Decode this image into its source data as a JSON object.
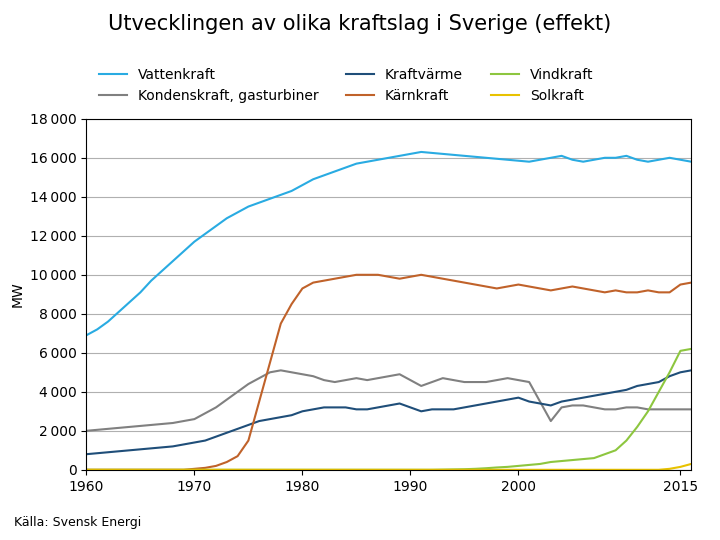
{
  "chart_data": {
    "type": "line",
    "title": "Utvecklingen av olika kraftslag i Sverige (effekt)",
    "y_label": "MW",
    "annotations": [
      "Källa: Svensk Energi"
    ],
    "grid": "y",
    "xlim": [
      1960,
      2016
    ],
    "xticks": [
      1960,
      1970,
      1980,
      1990,
      2000,
      2015
    ],
    "ylim": [
      0,
      18000
    ],
    "yticks": [
      0,
      {
        "value": 2000,
        "label": "2 000"
      },
      {
        "value": 4000,
        "label": "4 000"
      },
      {
        "value": 6000,
        "label": "6 000"
      },
      {
        "value": 8000,
        "label": "8 000"
      },
      {
        "value": 10000,
        "label": "10 000"
      },
      {
        "value": 12000,
        "label": "12 000"
      },
      {
        "value": 14000,
        "label": "14 000"
      },
      {
        "value": 16000,
        "label": "16 000"
      },
      {
        "value": 18000,
        "label": "18 000"
      }
    ],
    "x": [
      1960,
      1961,
      1962,
      1963,
      1964,
      1965,
      1966,
      1967,
      1968,
      1969,
      1970,
      1971,
      1972,
      1973,
      1974,
      1975,
      1976,
      1977,
      1978,
      1979,
      1980,
      1981,
      1982,
      1983,
      1984,
      1985,
      1986,
      1987,
      1988,
      1989,
      1990,
      1991,
      1992,
      1993,
      1994,
      1995,
      1996,
      1997,
      1998,
      1999,
      2000,
      2001,
      2002,
      2003,
      2004,
      2005,
      2006,
      2007,
      2008,
      2009,
      2010,
      2011,
      2012,
      2013,
      2014,
      2015,
      2016
    ],
    "series": [
      {
        "name": "Vattenkraft",
        "color": "#29ABE2",
        "values": [
          6900,
          7200,
          7600,
          8100,
          8600,
          9100,
          9700,
          10200,
          10700,
          11200,
          11700,
          12100,
          12500,
          12900,
          13200,
          13500,
          13700,
          13900,
          14100,
          14300,
          14600,
          14900,
          15100,
          15300,
          15500,
          15700,
          15800,
          15900,
          16000,
          16100,
          16200,
          16300,
          16250,
          16200,
          16150,
          16100,
          16050,
          16000,
          15950,
          15900,
          15850,
          15800,
          15900,
          16000,
          16100,
          15900,
          15800,
          15900,
          16000,
          16000,
          16100,
          15900,
          15800,
          15900,
          16000,
          15900,
          15800
        ]
      },
      {
        "name": "Kondenskraft, gasturbiner",
        "color": "#808080",
        "values": [
          2000,
          2050,
          2100,
          2150,
          2200,
          2250,
          2300,
          2350,
          2400,
          2500,
          2600,
          2900,
          3200,
          3600,
          4000,
          4400,
          4700,
          5000,
          5100,
          5000,
          4900,
          4800,
          4600,
          4500,
          4600,
          4700,
          4600,
          4700,
          4800,
          4900,
          4600,
          4300,
          4500,
          4700,
          4600,
          4500,
          4500,
          4500,
          4600,
          4700,
          4600,
          4500,
          3500,
          2500,
          3200,
          3300,
          3300,
          3200,
          3100,
          3100,
          3200,
          3200,
          3100,
          3100,
          3100,
          3100,
          3100
        ]
      },
      {
        "name": "Kraftvärme",
        "color": "#1F4E79",
        "values": [
          800,
          850,
          900,
          950,
          1000,
          1050,
          1100,
          1150,
          1200,
          1300,
          1400,
          1500,
          1700,
          1900,
          2100,
          2300,
          2500,
          2600,
          2700,
          2800,
          3000,
          3100,
          3200,
          3200,
          3200,
          3100,
          3100,
          3200,
          3300,
          3400,
          3200,
          3000,
          3100,
          3100,
          3100,
          3200,
          3300,
          3400,
          3500,
          3600,
          3700,
          3500,
          3400,
          3300,
          3500,
          3600,
          3700,
          3800,
          3900,
          4000,
          4100,
          4300,
          4400,
          4500,
          4800,
          5000,
          5100
        ]
      },
      {
        "name": "Kärnkraft",
        "color": "#C0622A",
        "values": [
          0,
          0,
          0,
          0,
          0,
          0,
          0,
          0,
          0,
          0,
          50,
          100,
          200,
          400,
          700,
          1500,
          3500,
          5500,
          7500,
          8500,
          9300,
          9600,
          9700,
          9800,
          9900,
          10000,
          10000,
          10000,
          9900,
          9800,
          9900,
          10000,
          9900,
          9800,
          9700,
          9600,
          9500,
          9400,
          9300,
          9400,
          9500,
          9400,
          9300,
          9200,
          9300,
          9400,
          9300,
          9200,
          9100,
          9200,
          9100,
          9100,
          9200,
          9100,
          9100,
          9500,
          9600
        ]
      },
      {
        "name": "Vindkraft",
        "color": "#8DC63F",
        "values": [
          0,
          0,
          0,
          0,
          0,
          0,
          0,
          0,
          0,
          0,
          0,
          0,
          0,
          0,
          0,
          0,
          0,
          0,
          0,
          0,
          0,
          0,
          0,
          0,
          0,
          0,
          0,
          0,
          0,
          0,
          0,
          0,
          0,
          10,
          20,
          30,
          50,
          80,
          120,
          150,
          200,
          250,
          300,
          400,
          450,
          500,
          550,
          600,
          800,
          1000,
          1500,
          2200,
          3000,
          4000,
          5000,
          6100,
          6200
        ]
      },
      {
        "name": "Solkraft",
        "color": "#E8C200",
        "values": [
          0,
          0,
          0,
          0,
          0,
          0,
          0,
          0,
          0,
          0,
          0,
          0,
          0,
          0,
          0,
          0,
          0,
          0,
          0,
          0,
          0,
          0,
          0,
          0,
          0,
          0,
          0,
          0,
          0,
          0,
          0,
          0,
          0,
          0,
          0,
          0,
          0,
          0,
          0,
          0,
          0,
          0,
          0,
          0,
          0,
          0,
          0,
          0,
          0,
          0,
          0,
          0,
          0,
          0,
          50,
          150,
          300
        ]
      }
    ]
  }
}
